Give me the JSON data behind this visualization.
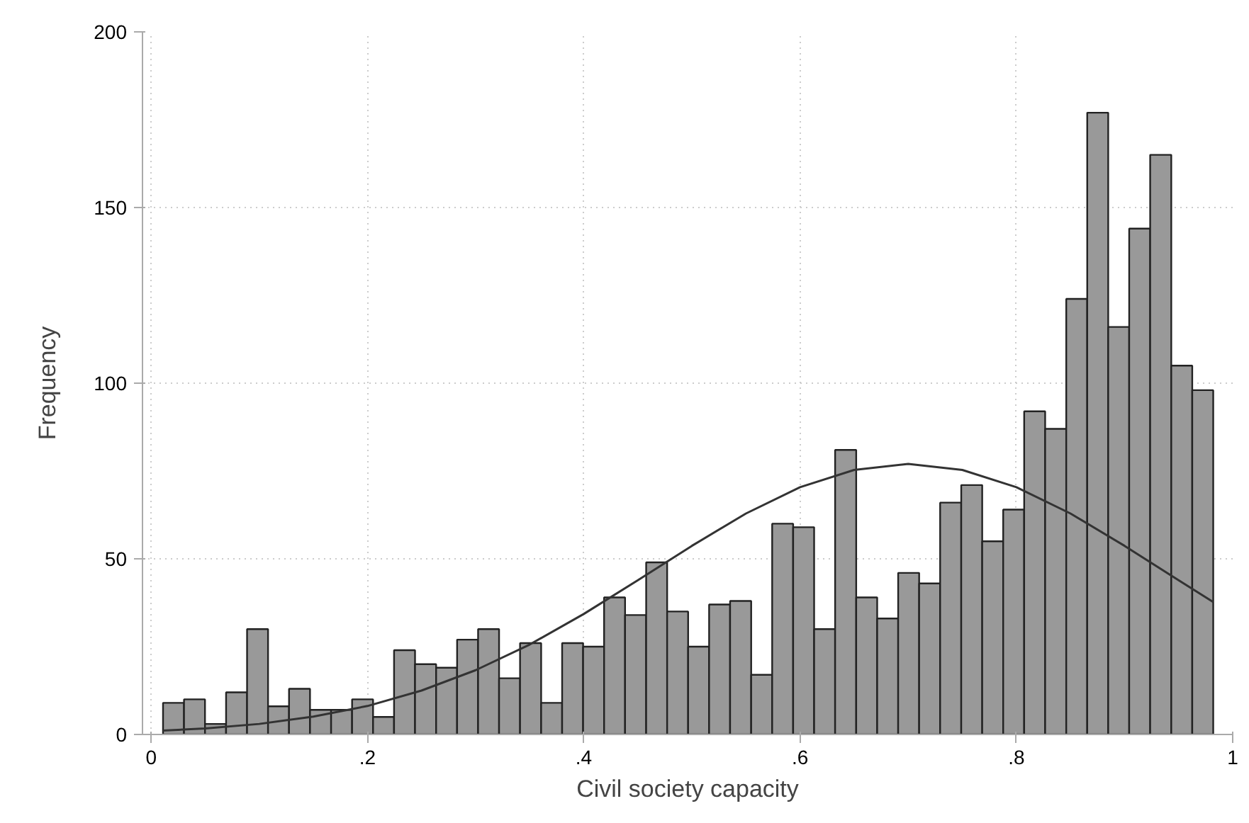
{
  "chart_data": {
    "type": "histogram",
    "xlabel": "Civil society capacity",
    "ylabel": "Frequency",
    "xlim": [
      -0.008,
      1
    ],
    "ylim": [
      0,
      200
    ],
    "xticks": [
      0,
      {
        "value": 0.2,
        "label": ".2"
      },
      {
        "value": 0.4,
        "label": ".4"
      },
      {
        "value": 0.6,
        "label": ".6"
      },
      {
        "value": 0.8,
        "label": ".8"
      },
      1
    ],
    "yticks": [
      0,
      50,
      100,
      150,
      200
    ],
    "grid": true,
    "series": [
      {
        "color": "#999999",
        "bins": [
          0.011,
          0.0304,
          0.0498,
          0.0693,
          0.0887,
          0.1081,
          0.1275,
          0.1469,
          0.1664,
          0.1858,
          0.2052,
          0.2246,
          0.244,
          0.2635,
          0.2829,
          0.3023,
          0.3217,
          0.3411,
          0.3606,
          0.38,
          0.3994,
          0.4188,
          0.4382,
          0.4577,
          0.4771,
          0.4965,
          0.5159,
          0.5353,
          0.5548,
          0.5742,
          0.5936,
          0.613,
          0.6324,
          0.6519,
          0.6713,
          0.6907,
          0.7101,
          0.7295,
          0.749,
          0.7684,
          0.7878,
          0.8072,
          0.8266,
          0.8461,
          0.8655,
          0.8849,
          0.9043,
          0.9237,
          0.9432,
          0.9626,
          0.982
        ],
        "values": [
          9,
          10,
          3,
          12,
          30,
          8,
          13,
          7,
          7,
          10,
          5,
          24,
          20,
          19,
          27,
          30,
          16,
          26,
          9,
          26,
          25,
          39,
          34,
          49,
          35,
          25,
          37,
          38,
          17,
          60,
          59,
          30,
          81,
          39,
          33,
          46,
          43,
          66,
          71,
          55,
          64,
          92,
          87,
          124,
          177,
          116,
          144,
          165,
          105,
          98
        ]
      },
      {
        "type": "line",
        "color": "#333333",
        "x": [
          0.011,
          0.05,
          0.1,
          0.15,
          0.2,
          0.25,
          0.3,
          0.35,
          0.4,
          0.45,
          0.5,
          0.55,
          0.6,
          0.65,
          0.7,
          0.75,
          0.8,
          0.85,
          0.9,
          0.95,
          0.982
        ],
        "values": [
          1.1,
          1.7,
          3.0,
          5.1,
          8.1,
          12.5,
          18.3,
          25.6,
          34.3,
          43.9,
          53.7,
          62.9,
          70.4,
          75.3,
          77,
          75.3,
          70.4,
          62.9,
          53.7,
          43.9,
          37.7
        ]
      }
    ]
  }
}
